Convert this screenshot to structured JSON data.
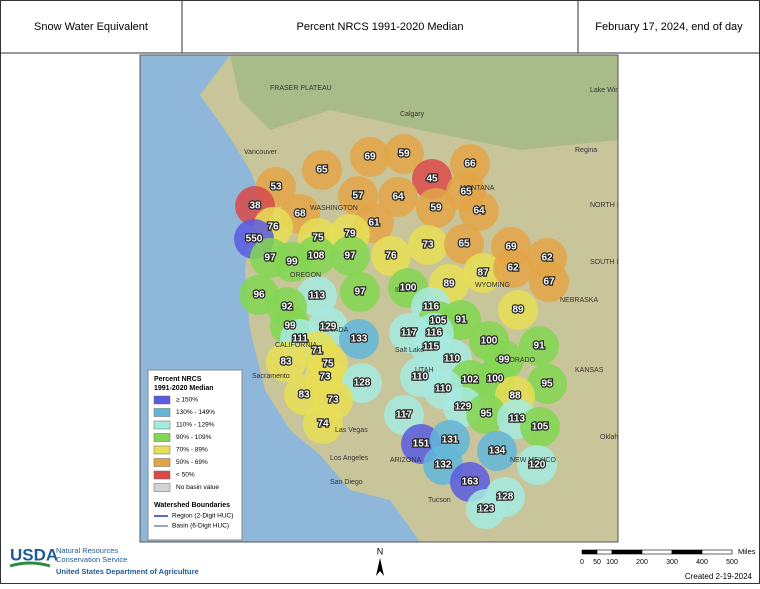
{
  "header": {
    "left": "Snow Water Equivalent",
    "center": "Percent NRCS 1991-2020 Median",
    "right": "February 17, 2024, end of day"
  },
  "places": [
    "FRASER PLATEAU",
    "Calgary",
    "Vancouver",
    "Regina",
    "Lake Winnipeg",
    "Sacramento",
    "Salt Lake",
    "Las Vegas",
    "Los Angeles",
    "San Diego",
    "Tucson",
    "Oklahoma City",
    "WASHINGTON",
    "OREGON",
    "IDAHO",
    "MONTANA",
    "WYOMING",
    "NEVADA",
    "UTAH",
    "COLORADO",
    "ARIZONA",
    "NEW MEXICO",
    "NORTH DAKOTA",
    "SOUTH DAKOTA",
    "NEBRASKA",
    "KANSAS",
    "CALIFORNIA"
  ],
  "basins": [
    {
      "value": 69,
      "color": "#e3a447"
    },
    {
      "value": 59,
      "color": "#e3a447"
    },
    {
      "value": 66,
      "color": "#e3a447"
    },
    {
      "value": 65,
      "color": "#e3a447"
    },
    {
      "value": 53,
      "color": "#e3a447"
    },
    {
      "value": 45,
      "color": "#d94a4a"
    },
    {
      "value": 65,
      "color": "#e3a447"
    },
    {
      "value": 57,
      "color": "#e3a447"
    },
    {
      "value": 64,
      "color": "#e3a447"
    },
    {
      "value": 38,
      "color": "#d94a4a"
    },
    {
      "value": 68,
      "color": "#e3a447"
    },
    {
      "value": 59,
      "color": "#e3a447"
    },
    {
      "value": 64,
      "color": "#e3a447"
    },
    {
      "value": 61,
      "color": "#e3a447"
    },
    {
      "value": 76,
      "color": "#e6de55"
    },
    {
      "value": 75,
      "color": "#e6de55"
    },
    {
      "value": 79,
      "color": "#e6de55"
    },
    {
      "value": 73,
      "color": "#e6de55"
    },
    {
      "value": 65,
      "color": "#e3a447"
    },
    {
      "value": 69,
      "color": "#e3a447"
    },
    {
      "value": 550,
      "color": "#5b5be0"
    },
    {
      "value": 97,
      "color": "#82d652"
    },
    {
      "value": 99,
      "color": "#82d652"
    },
    {
      "value": 108,
      "color": "#82d652"
    },
    {
      "value": 97,
      "color": "#82d652"
    },
    {
      "value": 76,
      "color": "#e6de55"
    },
    {
      "value": 62,
      "color": "#e3a447"
    },
    {
      "value": 87,
      "color": "#e6de55"
    },
    {
      "value": 62,
      "color": "#e3a447"
    },
    {
      "value": 67,
      "color": "#e3a447"
    },
    {
      "value": 96,
      "color": "#82d652"
    },
    {
      "value": 113,
      "color": "#a6eadf"
    },
    {
      "value": 97,
      "color": "#82d652"
    },
    {
      "value": 100,
      "color": "#82d652"
    },
    {
      "value": 89,
      "color": "#e6de55"
    },
    {
      "value": 92,
      "color": "#82d652"
    },
    {
      "value": 116,
      "color": "#a6eadf"
    },
    {
      "value": 89,
      "color": "#e6de55"
    },
    {
      "value": 105,
      "color": "#82d652"
    },
    {
      "value": 91,
      "color": "#82d652"
    },
    {
      "value": 99,
      "color": "#82d652"
    },
    {
      "value": 129,
      "color": "#a6eadf"
    },
    {
      "value": 117,
      "color": "#a6eadf"
    },
    {
      "value": 116,
      "color": "#a6eadf"
    },
    {
      "value": 111,
      "color": "#a6eadf"
    },
    {
      "value": 133,
      "color": "#62b6da"
    },
    {
      "value": 115,
      "color": "#a6eadf"
    },
    {
      "value": 100,
      "color": "#82d652"
    },
    {
      "value": 91,
      "color": "#82d652"
    },
    {
      "value": 71,
      "color": "#e6de55"
    },
    {
      "value": 110,
      "color": "#a6eadf"
    },
    {
      "value": 99,
      "color": "#82d652"
    },
    {
      "value": 83,
      "color": "#e6de55"
    },
    {
      "value": 75,
      "color": "#e6de55"
    },
    {
      "value": 73,
      "color": "#e6de55"
    },
    {
      "value": 128,
      "color": "#a6eadf"
    },
    {
      "value": 110,
      "color": "#a6eadf"
    },
    {
      "value": 102,
      "color": "#82d652"
    },
    {
      "value": 100,
      "color": "#82d652"
    },
    {
      "value": 95,
      "color": "#82d652"
    },
    {
      "value": 83,
      "color": "#e6de55"
    },
    {
      "value": 73,
      "color": "#e6de55"
    },
    {
      "value": 110,
      "color": "#a6eadf"
    },
    {
      "value": 88,
      "color": "#e6de55"
    },
    {
      "value": 129,
      "color": "#a6eadf"
    },
    {
      "value": 117,
      "color": "#a6eadf"
    },
    {
      "value": 95,
      "color": "#82d652"
    },
    {
      "value": 113,
      "color": "#a6eadf"
    },
    {
      "value": 74,
      "color": "#e6de55"
    },
    {
      "value": 105,
      "color": "#82d652"
    },
    {
      "value": 151,
      "color": "#5b5be0"
    },
    {
      "value": 131,
      "color": "#62b6da"
    },
    {
      "value": 134,
      "color": "#62b6da"
    },
    {
      "value": 132,
      "color": "#62b6da"
    },
    {
      "value": 120,
      "color": "#a6eadf"
    },
    {
      "value": 163,
      "color": "#5b5be0"
    },
    {
      "value": 128,
      "color": "#a6eadf"
    },
    {
      "value": 123,
      "color": "#a6eadf"
    }
  ],
  "legend": {
    "title": [
      "Percent NRCS",
      "1991-2020 Median"
    ],
    "items": [
      {
        "label": "≥ 150%",
        "color": "#5b5be0"
      },
      {
        "label": "130% - 149%",
        "color": "#62b6da"
      },
      {
        "label": "110% - 129%",
        "color": "#a6eadf"
      },
      {
        "label": "90% - 109%",
        "color": "#82d652"
      },
      {
        "label": "70% - 89%",
        "color": "#e6de55"
      },
      {
        "label": "50% - 69%",
        "color": "#e3a447"
      },
      {
        "label": "< 50%",
        "color": "#d94a4a"
      },
      {
        "label": "No basin value",
        "color": "#d3d3d3"
      }
    ],
    "boundaries_title": "Watershed Boundaries",
    "boundaries": [
      {
        "label": "Region (2-Digit HUC)",
        "color": "#2233cc"
      },
      {
        "label": "Basin (6-Digit HUC)",
        "color": "#7788aa"
      }
    ]
  },
  "footer": {
    "logo": "USDA",
    "agency": [
      "Natural Resources",
      "Conservation Service"
    ],
    "department": "United States Department of Agriculture",
    "north": "N",
    "created": "Created 2-19-2024"
  },
  "scale": {
    "ticks": [
      0,
      50,
      100,
      200,
      300,
      400,
      500
    ],
    "unit": "Miles"
  }
}
